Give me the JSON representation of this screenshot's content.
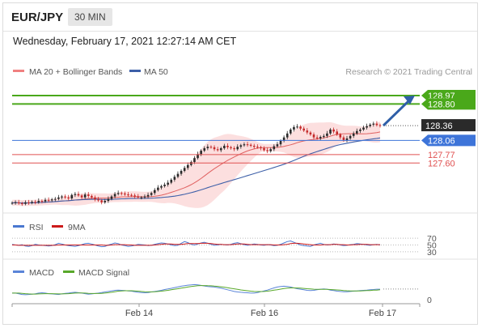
{
  "header": {
    "symbol": "EUR/JPY",
    "timeframe": "30 MIN",
    "datetime": "Wednesday, February 17, 2021 12:27:14 AM CET"
  },
  "colors": {
    "bull": "#2a2a2a",
    "bear": "#c42a2a",
    "ma20": "#e06060",
    "bollinger_fill": "#f9c4c4",
    "ma50": "#3d5fa8",
    "resistance": "#4aa81a",
    "support_red": "#e05050",
    "blue_level": "#3d74d9",
    "arrow": "#2f5fa8",
    "rsi": "#4a78d0",
    "rsi_ma": "#cc1a1a",
    "macd": "#5a84d8",
    "macd_signal": "#58a82a"
  },
  "chart_data": [
    {
      "type": "line",
      "panel": "price",
      "legend": [
        {
          "name": "MA 20 + Bollinger Bands",
          "color": "#f08080"
        },
        {
          "name": "MA 50",
          "color": "#3d5fa8"
        }
      ],
      "watermark": "Research © 2021 Trading Central",
      "x_ticks": [
        "Feb 14",
        "Feb 16",
        "Feb 17"
      ],
      "ylim": [
        126.6,
        129.3
      ],
      "last_price": 128.36,
      "levels": [
        {
          "value": 128.97,
          "label": "128.97",
          "role": "target",
          "color": "#4aa81a"
        },
        {
          "value": 128.8,
          "label": "128.80",
          "role": "target",
          "color": "#4aa81a"
        },
        {
          "value": 128.36,
          "label": "128.36",
          "role": "last",
          "color": "#2a2a2a"
        },
        {
          "value": 128.06,
          "label": "128.06",
          "role": "pivot",
          "color": "#3d74d9"
        },
        {
          "value": 127.77,
          "label": "127.77",
          "role": "support",
          "color": "#e05050"
        },
        {
          "value": 127.6,
          "label": "127.60",
          "role": "support",
          "color": "#e05050"
        }
      ],
      "close": [
        126.79,
        126.8,
        126.78,
        126.77,
        126.8,
        126.79,
        126.81,
        126.8,
        126.83,
        126.82,
        126.85,
        126.84,
        126.86,
        126.87,
        126.9,
        126.92,
        126.9,
        126.88,
        126.95,
        126.97,
        126.94,
        126.9,
        126.96,
        126.93,
        126.9,
        126.86,
        126.84,
        126.8,
        126.83,
        126.87,
        126.92,
        126.97,
        126.99,
        126.98,
        126.96,
        126.95,
        126.94,
        126.92,
        126.9,
        126.9,
        126.92,
        126.95,
        126.99,
        127.05,
        127.1,
        127.13,
        127.16,
        127.2,
        127.26,
        127.32,
        127.38,
        127.44,
        127.5,
        127.56,
        127.62,
        127.7,
        127.78,
        127.85,
        127.9,
        127.93,
        127.92,
        127.88,
        127.86,
        127.9,
        127.95,
        127.92,
        127.9,
        127.88,
        127.93,
        127.96,
        127.98,
        127.97,
        127.95,
        127.93,
        127.92,
        127.9,
        127.86,
        127.84,
        127.88,
        127.94,
        127.98,
        128.05,
        128.12,
        128.2,
        128.28,
        128.33,
        128.34,
        128.3,
        128.26,
        128.22,
        128.18,
        128.12,
        128.1,
        128.13,
        128.15,
        128.2,
        128.28,
        128.24,
        128.18,
        128.12,
        128.06,
        128.1,
        128.15,
        128.2,
        128.25,
        128.28,
        128.32,
        128.35,
        128.38,
        128.4,
        128.37,
        128.36
      ]
    },
    {
      "type": "line",
      "panel": "rsi",
      "legend": [
        {
          "name": "RSI",
          "color": "#4a78d0"
        },
        {
          "name": "9MA",
          "color": "#cc1a1a"
        }
      ],
      "y_ticks": [
        70,
        50,
        30
      ],
      "ylim": [
        20,
        80
      ],
      "series": [
        {
          "name": "RSI",
          "values": [
            52,
            50,
            49,
            51,
            47,
            46,
            48,
            52,
            50,
            49,
            48,
            47,
            48,
            51,
            55,
            53,
            50,
            48,
            47,
            46,
            48,
            51,
            54,
            55,
            53,
            50,
            47,
            45,
            46,
            50,
            53,
            56,
            54,
            50,
            48,
            46,
            47,
            49,
            52,
            51,
            50,
            48,
            49,
            52,
            54,
            56,
            55,
            53,
            50,
            48,
            49,
            55,
            60,
            57,
            52,
            50,
            53,
            56,
            58,
            55,
            52,
            49,
            50,
            52,
            51,
            50,
            52,
            55,
            57,
            54,
            51,
            49,
            51,
            53,
            52,
            50,
            49,
            51,
            50,
            48,
            49,
            52,
            56,
            60,
            62,
            58,
            54,
            50,
            48,
            47,
            46,
            50,
            53,
            55,
            52,
            50,
            51,
            53,
            52,
            50,
            48,
            49,
            51,
            52,
            54,
            53,
            52,
            50,
            49,
            51,
            52,
            50
          ]
        },
        {
          "name": "9MA",
          "values": [
            50,
            50,
            49,
            49,
            49,
            49,
            49,
            49,
            49,
            49,
            49,
            49,
            49,
            49,
            50,
            50,
            50,
            50,
            50,
            50,
            50,
            50,
            50,
            50,
            50,
            50,
            50,
            50,
            49,
            49,
            50,
            51,
            51,
            51,
            51,
            50,
            50,
            49,
            49,
            49,
            49,
            49,
            49,
            50,
            51,
            52,
            53,
            53,
            53,
            52,
            52,
            52,
            53,
            54,
            54,
            54,
            54,
            55,
            55,
            55,
            54,
            53,
            52,
            52,
            51,
            51,
            51,
            52,
            53,
            53,
            53,
            52,
            51,
            51,
            51,
            51,
            51,
            51,
            51,
            50,
            50,
            50,
            51,
            52,
            54,
            55,
            55,
            54,
            53,
            52,
            51,
            50,
            50,
            50,
            51,
            51,
            51,
            52,
            52,
            51,
            51,
            50,
            50,
            51,
            51,
            52,
            52,
            52,
            51,
            51,
            51,
            51
          ]
        }
      ]
    },
    {
      "type": "line",
      "panel": "macd",
      "legend": [
        {
          "name": "MACD",
          "color": "#5a84d8"
        },
        {
          "name": "MACD Signal",
          "color": "#58a82a"
        }
      ],
      "y_ticks": [
        0
      ],
      "ylim": [
        -0.06,
        0.1
      ],
      "series": [
        {
          "name": "MACD",
          "values": [
            0.0,
            0.0,
            -0.005,
            -0.01,
            -0.012,
            -0.01,
            -0.008,
            -0.005,
            0.0,
            0.002,
            0.0,
            -0.004,
            -0.006,
            -0.008,
            -0.01,
            -0.006,
            -0.002,
            0.0,
            0.004,
            0.006,
            0.003,
            0.0,
            -0.004,
            -0.008,
            -0.006,
            -0.003,
            0.0,
            0.004,
            0.008,
            0.012,
            0.016,
            0.02,
            0.022,
            0.02,
            0.018,
            0.016,
            0.014,
            0.01,
            0.006,
            0.004,
            0.002,
            0.004,
            0.008,
            0.012,
            0.016,
            0.02,
            0.026,
            0.03,
            0.035,
            0.04,
            0.045,
            0.05,
            0.054,
            0.058,
            0.06,
            0.062,
            0.06,
            0.056,
            0.052,
            0.048,
            0.046,
            0.044,
            0.04,
            0.036,
            0.03,
            0.024,
            0.018,
            0.012,
            0.008,
            0.006,
            0.004,
            0.002,
            0.0,
            0.0,
            0.004,
            0.01,
            0.016,
            0.022,
            0.03,
            0.038,
            0.044,
            0.048,
            0.05,
            0.048,
            0.044,
            0.038,
            0.032,
            0.028,
            0.024,
            0.02,
            0.018,
            0.02,
            0.024,
            0.028,
            0.03,
            0.028,
            0.022,
            0.018,
            0.014,
            0.012,
            0.01,
            0.01,
            0.012,
            0.014,
            0.016,
            0.018,
            0.02,
            0.022,
            0.024,
            0.026,
            0.028,
            0.028
          ]
        },
        {
          "name": "MACD Signal",
          "values": [
            0.0,
            0.0,
            0.0,
            -0.002,
            -0.004,
            -0.006,
            -0.007,
            -0.007,
            -0.006,
            -0.005,
            -0.004,
            -0.004,
            -0.004,
            -0.005,
            -0.006,
            -0.006,
            -0.005,
            -0.004,
            -0.002,
            0.0,
            0.001,
            0.001,
            0.0,
            -0.002,
            -0.003,
            -0.003,
            -0.003,
            -0.002,
            0.0,
            0.003,
            0.006,
            0.01,
            0.014,
            0.016,
            0.017,
            0.017,
            0.017,
            0.016,
            0.014,
            0.012,
            0.01,
            0.009,
            0.009,
            0.01,
            0.012,
            0.014,
            0.017,
            0.02,
            0.024,
            0.028,
            0.032,
            0.036,
            0.04,
            0.044,
            0.048,
            0.051,
            0.054,
            0.055,
            0.055,
            0.054,
            0.053,
            0.051,
            0.049,
            0.046,
            0.043,
            0.039,
            0.035,
            0.031,
            0.027,
            0.023,
            0.02,
            0.017,
            0.014,
            0.012,
            0.011,
            0.011,
            0.012,
            0.014,
            0.017,
            0.021,
            0.025,
            0.029,
            0.033,
            0.036,
            0.038,
            0.038,
            0.037,
            0.036,
            0.034,
            0.032,
            0.03,
            0.028,
            0.027,
            0.027,
            0.027,
            0.027,
            0.026,
            0.025,
            0.023,
            0.021,
            0.019,
            0.017,
            0.016,
            0.016,
            0.016,
            0.016,
            0.017,
            0.018,
            0.019,
            0.021,
            0.022,
            0.024
          ]
        }
      ]
    }
  ]
}
